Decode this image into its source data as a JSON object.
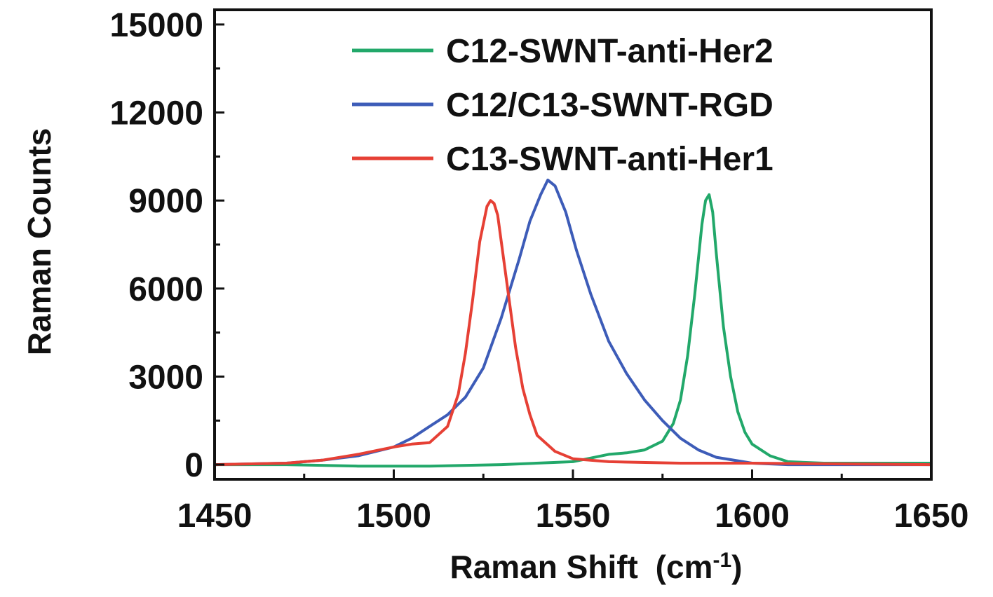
{
  "chart_data": {
    "type": "line",
    "title": "",
    "xlabel": "Raman Shift",
    "xlabel_unit_base": "(cm",
    "xlabel_unit_exp": "-1",
    "xlabel_unit_close": ")",
    "ylabel": "Raman Counts",
    "xlim": [
      1450,
      1650
    ],
    "ylim": [
      -500,
      15500
    ],
    "xticks": [
      1450,
      1500,
      1550,
      1600,
      1650
    ],
    "xtick_labels": [
      "1450",
      "1500",
      "1550",
      "1600",
      "1650"
    ],
    "yticks": [
      0,
      3000,
      6000,
      9000,
      12000,
      15000
    ],
    "ytick_labels": [
      "0",
      "3000",
      "6000",
      "9000",
      "12000",
      "15000"
    ],
    "grid": false,
    "legend_position": "top-right",
    "series": [
      {
        "name": "C12-SWNT-anti-Her2",
        "color": "#22a86a",
        "x": [
          1450,
          1470,
          1490,
          1510,
          1530,
          1550,
          1560,
          1565,
          1570,
          1575,
          1578,
          1580,
          1582,
          1584,
          1586,
          1587,
          1588,
          1589,
          1590,
          1592,
          1594,
          1596,
          1598,
          1600,
          1605,
          1610,
          1620,
          1650
        ],
        "y": [
          0,
          0,
          -50,
          -50,
          0,
          100,
          350,
          400,
          500,
          800,
          1400,
          2200,
          3700,
          5800,
          8200,
          9000,
          9200,
          8600,
          7200,
          4700,
          3000,
          1800,
          1100,
          700,
          300,
          100,
          50,
          50
        ]
      },
      {
        "name": "C12/C13-SWNT-RGD",
        "color": "#3d5cb8",
        "x": [
          1450,
          1470,
          1480,
          1490,
          1500,
          1505,
          1510,
          1515,
          1520,
          1525,
          1530,
          1535,
          1538,
          1541,
          1543,
          1545,
          1548,
          1551,
          1555,
          1560,
          1565,
          1570,
          1575,
          1580,
          1585,
          1590,
          1600,
          1610,
          1650
        ],
        "y": [
          0,
          50,
          150,
          300,
          600,
          900,
          1300,
          1700,
          2300,
          3300,
          5000,
          7000,
          8300,
          9200,
          9700,
          9500,
          8600,
          7300,
          5800,
          4200,
          3100,
          2200,
          1500,
          900,
          500,
          250,
          50,
          0,
          0
        ]
      },
      {
        "name": "C13-SWNT-anti-Her1",
        "color": "#e64035",
        "x": [
          1450,
          1470,
          1480,
          1490,
          1500,
          1505,
          1510,
          1515,
          1518,
          1520,
          1522,
          1524,
          1526,
          1527,
          1528,
          1529,
          1530,
          1532,
          1534,
          1536,
          1538,
          1540,
          1545,
          1550,
          1560,
          1580,
          1600,
          1650
        ],
        "y": [
          0,
          50,
          150,
          350,
          600,
          700,
          750,
          1300,
          2400,
          3800,
          5600,
          7600,
          8800,
          9000,
          8900,
          8500,
          7600,
          5800,
          4000,
          2600,
          1700,
          1000,
          450,
          200,
          100,
          50,
          50,
          0
        ]
      }
    ]
  }
}
